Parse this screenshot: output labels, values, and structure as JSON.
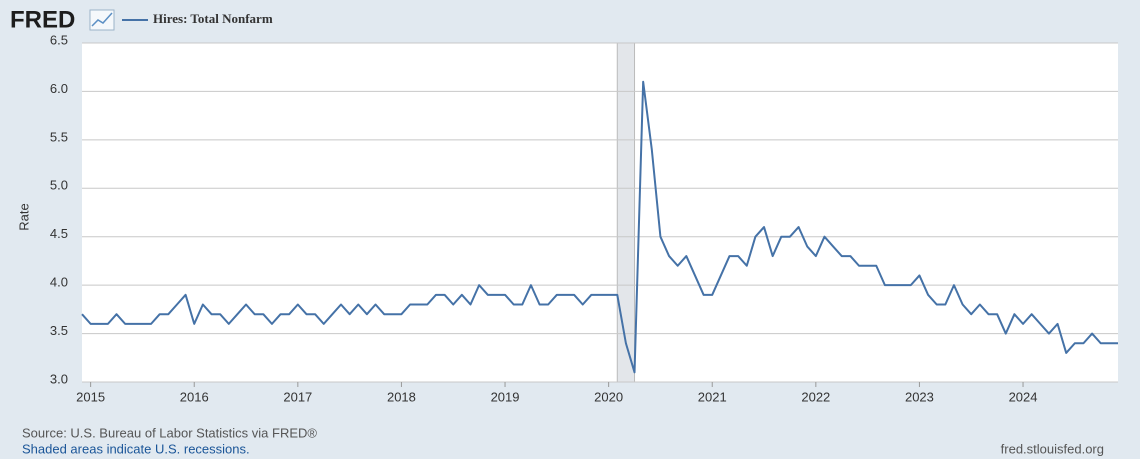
{
  "header": {
    "logo": "FRED"
  },
  "chart_data": {
    "type": "line",
    "y_label": "Rate",
    "xlim": [
      "2014-12",
      "2024-12"
    ],
    "xticks": [
      {
        "value": "2015-01",
        "label": "2015"
      },
      {
        "value": "2016-01",
        "label": "2016"
      },
      {
        "value": "2017-01",
        "label": "2017"
      },
      {
        "value": "2018-01",
        "label": "2018"
      },
      {
        "value": "2019-01",
        "label": "2019"
      },
      {
        "value": "2020-01",
        "label": "2020"
      },
      {
        "value": "2021-01",
        "label": "2021"
      },
      {
        "value": "2022-01",
        "label": "2022"
      },
      {
        "value": "2023-01",
        "label": "2023"
      },
      {
        "value": "2024-01",
        "label": "2024"
      }
    ],
    "ylim": [
      3,
      6.5
    ],
    "yticks": [
      {
        "value": 3,
        "label": "3.0"
      },
      3.5,
      {
        "value": 4,
        "label": "4.0"
      },
      4.5,
      {
        "value": 5,
        "label": "5.0"
      },
      5.5,
      {
        "value": 6,
        "label": "6.0"
      },
      6.5
    ],
    "grid": true,
    "recessions": [
      {
        "start": "2020-02",
        "end": "2020-04"
      }
    ],
    "x": [
      "2014-12",
      "2015-01",
      "2015-02",
      "2015-03",
      "2015-04",
      "2015-05",
      "2015-06",
      "2015-07",
      "2015-08",
      "2015-09",
      "2015-10",
      "2015-11",
      "2015-12",
      "2016-01",
      "2016-02",
      "2016-03",
      "2016-04",
      "2016-05",
      "2016-06",
      "2016-07",
      "2016-08",
      "2016-09",
      "2016-10",
      "2016-11",
      "2016-12",
      "2017-01",
      "2017-02",
      "2017-03",
      "2017-04",
      "2017-05",
      "2017-06",
      "2017-07",
      "2017-08",
      "2017-09",
      "2017-10",
      "2017-11",
      "2017-12",
      "2018-01",
      "2018-02",
      "2018-03",
      "2018-04",
      "2018-05",
      "2018-06",
      "2018-07",
      "2018-08",
      "2018-09",
      "2018-10",
      "2018-11",
      "2018-12",
      "2019-01",
      "2019-02",
      "2019-03",
      "2019-04",
      "2019-05",
      "2019-06",
      "2019-07",
      "2019-08",
      "2019-09",
      "2019-10",
      "2019-11",
      "2019-12",
      "2020-01",
      "2020-02",
      "2020-03",
      "2020-04",
      "2020-05",
      "2020-06",
      "2020-07",
      "2020-08",
      "2020-09",
      "2020-10",
      "2020-11",
      "2020-12",
      "2021-01",
      "2021-02",
      "2021-03",
      "2021-04",
      "2021-05",
      "2021-06",
      "2021-07",
      "2021-08",
      "2021-09",
      "2021-10",
      "2021-11",
      "2021-12",
      "2022-01",
      "2022-02",
      "2022-03",
      "2022-04",
      "2022-05",
      "2022-06",
      "2022-07",
      "2022-08",
      "2022-09",
      "2022-10",
      "2022-11",
      "2022-12",
      "2023-01",
      "2023-02",
      "2023-03",
      "2023-04",
      "2023-05",
      "2023-06",
      "2023-07",
      "2023-08",
      "2023-09",
      "2023-10",
      "2023-11",
      "2023-12",
      "2024-01",
      "2024-02",
      "2024-03",
      "2024-04",
      "2024-05",
      "2024-06",
      "2024-07",
      "2024-08",
      "2024-09",
      "2024-10",
      "2024-11",
      "2024-12"
    ],
    "series": [
      {
        "name": "Hires: Total Nonfarm",
        "color": "#4572a7",
        "values": [
          3.7,
          3.6,
          3.6,
          3.6,
          3.7,
          3.6,
          3.6,
          3.6,
          3.6,
          3.7,
          3.7,
          3.8,
          3.9,
          3.6,
          3.8,
          3.7,
          3.7,
          3.6,
          3.7,
          3.8,
          3.7,
          3.7,
          3.6,
          3.7,
          3.7,
          3.8,
          3.7,
          3.7,
          3.6,
          3.7,
          3.8,
          3.7,
          3.8,
          3.7,
          3.8,
          3.7,
          3.7,
          3.7,
          3.8,
          3.8,
          3.8,
          3.9,
          3.9,
          3.8,
          3.9,
          3.8,
          4.0,
          3.9,
          3.9,
          3.9,
          3.8,
          3.8,
          4.0,
          3.8,
          3.8,
          3.9,
          3.9,
          3.9,
          3.8,
          3.9,
          3.9,
          3.9,
          3.9,
          3.4,
          3.1,
          6.1,
          5.4,
          4.5,
          4.3,
          4.2,
          4.3,
          4.1,
          3.9,
          3.9,
          4.1,
          4.3,
          4.3,
          4.2,
          4.5,
          4.6,
          4.3,
          4.5,
          4.5,
          4.6,
          4.4,
          4.3,
          4.5,
          4.4,
          4.3,
          4.3,
          4.2,
          4.2,
          4.2,
          4.0,
          4.0,
          4.0,
          4.0,
          4.1,
          3.9,
          3.8,
          3.8,
          4.0,
          3.8,
          3.7,
          3.8,
          3.7,
          3.7,
          3.5,
          3.7,
          3.6,
          3.7,
          3.6,
          3.5,
          3.6,
          3.3,
          3.4,
          3.4,
          3.5,
          3.4,
          3.4,
          3.4
        ]
      }
    ]
  },
  "footer": {
    "source": "Source: U.S. Bureau of Labor Statistics via FRED®",
    "note": "Shaded areas indicate U.S. recessions.",
    "site": "fred.stlouisfed.org"
  }
}
